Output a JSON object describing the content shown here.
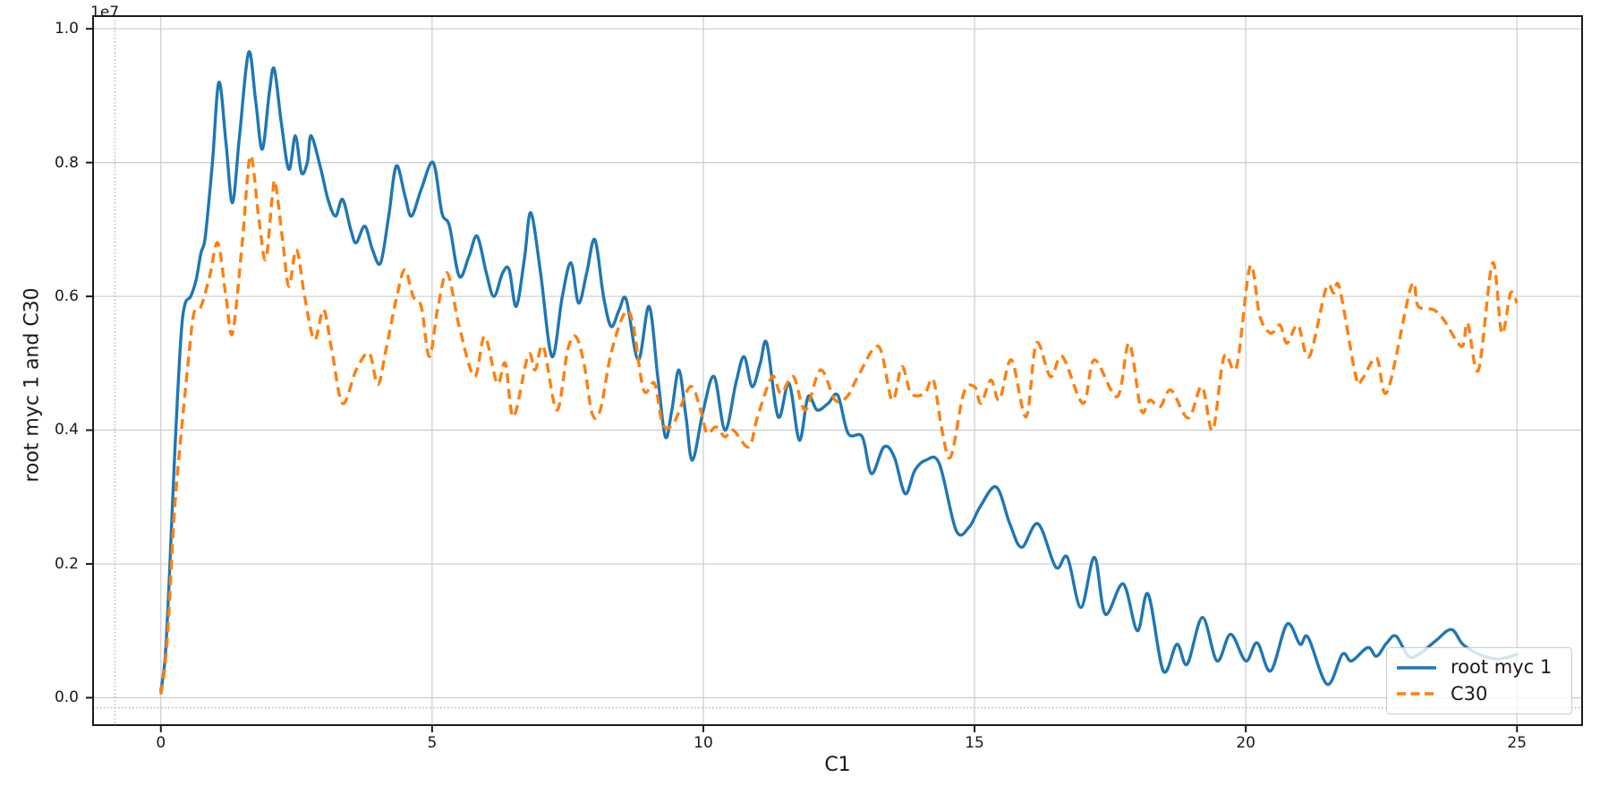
{
  "chart_data": {
    "type": "line",
    "title": "",
    "xlabel": "C1",
    "ylabel": "root myc 1 and C30",
    "y_offset_text": "1e7",
    "x_ticks": [
      "0",
      "5",
      "10",
      "15",
      "20",
      "25"
    ],
    "y_ticks": [
      "0.0",
      "0.2",
      "0.4",
      "0.6",
      "0.8",
      "1.0"
    ],
    "xlim": [
      -1.25,
      26.2
    ],
    "ylim": [
      -0.041,
      1.019
    ],
    "grid": "on",
    "y_unit": "1e7",
    "legend": {
      "location": "lower right",
      "labels": [
        "root myc 1",
        "C30"
      ]
    },
    "ref_lines": {
      "dotted_vline_x": -0.85,
      "dotted_hline_y": -0.015
    },
    "series": [
      {
        "name": "root myc 1",
        "color": "#1f77b4",
        "line_style": "solid",
        "points": [
          [
            0,
            0.01
          ],
          [
            0.08,
            0.06
          ],
          [
            0.15,
            0.17
          ],
          [
            0.22,
            0.3
          ],
          [
            0.3,
            0.44
          ],
          [
            0.38,
            0.55
          ],
          [
            0.45,
            0.59
          ],
          [
            0.55,
            0.6
          ],
          [
            0.65,
            0.625
          ],
          [
            0.74,
            0.665
          ],
          [
            0.82,
            0.69
          ],
          [
            0.95,
            0.8
          ],
          [
            1.07,
            0.92
          ],
          [
            1.2,
            0.83
          ],
          [
            1.32,
            0.74
          ],
          [
            1.45,
            0.84
          ],
          [
            1.62,
            0.965
          ],
          [
            1.75,
            0.89
          ],
          [
            1.87,
            0.82
          ],
          [
            2.0,
            0.905
          ],
          [
            2.09,
            0.94
          ],
          [
            2.22,
            0.86
          ],
          [
            2.36,
            0.79
          ],
          [
            2.48,
            0.84
          ],
          [
            2.59,
            0.785
          ],
          [
            2.7,
            0.8
          ],
          [
            2.77,
            0.84
          ],
          [
            2.95,
            0.79
          ],
          [
            3.08,
            0.745
          ],
          [
            3.22,
            0.72
          ],
          [
            3.35,
            0.745
          ],
          [
            3.5,
            0.7
          ],
          [
            3.6,
            0.68
          ],
          [
            3.76,
            0.705
          ],
          [
            3.9,
            0.67
          ],
          [
            4.05,
            0.65
          ],
          [
            4.2,
            0.72
          ],
          [
            4.34,
            0.795
          ],
          [
            4.5,
            0.75
          ],
          [
            4.62,
            0.72
          ],
          [
            4.8,
            0.76
          ],
          [
            5.02,
            0.8
          ],
          [
            5.18,
            0.725
          ],
          [
            5.32,
            0.705
          ],
          [
            5.5,
            0.63
          ],
          [
            5.68,
            0.66
          ],
          [
            5.83,
            0.69
          ],
          [
            6.0,
            0.635
          ],
          [
            6.14,
            0.6
          ],
          [
            6.3,
            0.635
          ],
          [
            6.42,
            0.64
          ],
          [
            6.55,
            0.585
          ],
          [
            6.7,
            0.655
          ],
          [
            6.82,
            0.725
          ],
          [
            7.0,
            0.635
          ],
          [
            7.21,
            0.51
          ],
          [
            7.4,
            0.6
          ],
          [
            7.56,
            0.65
          ],
          [
            7.7,
            0.59
          ],
          [
            7.85,
            0.635
          ],
          [
            8.0,
            0.685
          ],
          [
            8.16,
            0.6
          ],
          [
            8.3,
            0.555
          ],
          [
            8.45,
            0.58
          ],
          [
            8.58,
            0.595
          ],
          [
            8.8,
            0.505
          ],
          [
            9.0,
            0.585
          ],
          [
            9.16,
            0.48
          ],
          [
            9.3,
            0.39
          ],
          [
            9.42,
            0.43
          ],
          [
            9.55,
            0.49
          ],
          [
            9.68,
            0.42
          ],
          [
            9.8,
            0.355
          ],
          [
            10.0,
            0.43
          ],
          [
            10.2,
            0.48
          ],
          [
            10.4,
            0.4
          ],
          [
            10.6,
            0.47
          ],
          [
            10.75,
            0.51
          ],
          [
            10.9,
            0.465
          ],
          [
            11.05,
            0.5
          ],
          [
            11.17,
            0.53
          ],
          [
            11.38,
            0.42
          ],
          [
            11.58,
            0.47
          ],
          [
            11.77,
            0.385
          ],
          [
            11.93,
            0.45
          ],
          [
            12.1,
            0.43
          ],
          [
            12.3,
            0.44
          ],
          [
            12.48,
            0.452
          ],
          [
            12.67,
            0.395
          ],
          [
            12.93,
            0.39
          ],
          [
            13.1,
            0.335
          ],
          [
            13.33,
            0.375
          ],
          [
            13.52,
            0.36
          ],
          [
            13.72,
            0.305
          ],
          [
            13.9,
            0.34
          ],
          [
            14.1,
            0.355
          ],
          [
            14.35,
            0.35
          ],
          [
            14.66,
            0.25
          ],
          [
            14.9,
            0.255
          ],
          [
            15.1,
            0.285
          ],
          [
            15.4,
            0.315
          ],
          [
            15.65,
            0.26
          ],
          [
            15.87,
            0.225
          ],
          [
            16.17,
            0.26
          ],
          [
            16.5,
            0.195
          ],
          [
            16.71,
            0.21
          ],
          [
            16.96,
            0.135
          ],
          [
            17.21,
            0.21
          ],
          [
            17.41,
            0.125
          ],
          [
            17.74,
            0.17
          ],
          [
            18.0,
            0.1
          ],
          [
            18.2,
            0.155
          ],
          [
            18.48,
            0.04
          ],
          [
            18.73,
            0.08
          ],
          [
            18.92,
            0.05
          ],
          [
            19.2,
            0.12
          ],
          [
            19.47,
            0.055
          ],
          [
            19.72,
            0.095
          ],
          [
            20.0,
            0.055
          ],
          [
            20.21,
            0.082
          ],
          [
            20.46,
            0.04
          ],
          [
            20.76,
            0.11
          ],
          [
            21.0,
            0.08
          ],
          [
            21.15,
            0.09
          ],
          [
            21.5,
            0.02
          ],
          [
            21.78,
            0.065
          ],
          [
            21.95,
            0.055
          ],
          [
            22.25,
            0.075
          ],
          [
            22.41,
            0.062
          ],
          [
            22.6,
            0.082
          ],
          [
            22.77,
            0.092
          ],
          [
            23.0,
            0.062
          ],
          [
            23.21,
            0.066
          ],
          [
            23.5,
            0.085
          ],
          [
            23.79,
            0.102
          ],
          [
            24.0,
            0.08
          ],
          [
            24.3,
            0.065
          ],
          [
            24.6,
            0.058
          ],
          [
            24.8,
            0.06
          ],
          [
            25.0,
            0.065
          ]
        ]
      },
      {
        "name": "C30",
        "color": "#ff7f0e",
        "line_style": "dashed",
        "points": [
          [
            0,
            0.005
          ],
          [
            0.08,
            0.05
          ],
          [
            0.15,
            0.13
          ],
          [
            0.22,
            0.24
          ],
          [
            0.3,
            0.33
          ],
          [
            0.41,
            0.425
          ],
          [
            0.52,
            0.515
          ],
          [
            0.61,
            0.575
          ],
          [
            0.74,
            0.585
          ],
          [
            0.9,
            0.63
          ],
          [
            1.05,
            0.68
          ],
          [
            1.2,
            0.6
          ],
          [
            1.32,
            0.545
          ],
          [
            1.5,
            0.68
          ],
          [
            1.65,
            0.81
          ],
          [
            1.8,
            0.72
          ],
          [
            1.93,
            0.655
          ],
          [
            2.05,
            0.745
          ],
          [
            2.11,
            0.77
          ],
          [
            2.25,
            0.68
          ],
          [
            2.36,
            0.615
          ],
          [
            2.5,
            0.67
          ],
          [
            2.65,
            0.6
          ],
          [
            2.83,
            0.535
          ],
          [
            3.0,
            0.58
          ],
          [
            3.15,
            0.52
          ],
          [
            3.35,
            0.44
          ],
          [
            3.6,
            0.49
          ],
          [
            3.84,
            0.515
          ],
          [
            4.0,
            0.468
          ],
          [
            4.15,
            0.52
          ],
          [
            4.35,
            0.6
          ],
          [
            4.5,
            0.64
          ],
          [
            4.65,
            0.6
          ],
          [
            4.8,
            0.585
          ],
          [
            4.95,
            0.51
          ],
          [
            5.1,
            0.58
          ],
          [
            5.28,
            0.635
          ],
          [
            5.5,
            0.555
          ],
          [
            5.78,
            0.48
          ],
          [
            5.97,
            0.54
          ],
          [
            6.2,
            0.47
          ],
          [
            6.35,
            0.5
          ],
          [
            6.5,
            0.42
          ],
          [
            6.77,
            0.512
          ],
          [
            6.9,
            0.49
          ],
          [
            7.05,
            0.525
          ],
          [
            7.3,
            0.43
          ],
          [
            7.5,
            0.52
          ],
          [
            7.65,
            0.54
          ],
          [
            7.8,
            0.5
          ],
          [
            7.95,
            0.425
          ],
          [
            8.1,
            0.43
          ],
          [
            8.3,
            0.515
          ],
          [
            8.55,
            0.575
          ],
          [
            8.7,
            0.56
          ],
          [
            8.9,
            0.46
          ],
          [
            9.1,
            0.47
          ],
          [
            9.25,
            0.41
          ],
          [
            9.45,
            0.41
          ],
          [
            9.76,
            0.465
          ],
          [
            9.95,
            0.43
          ],
          [
            10.07,
            0.395
          ],
          [
            10.23,
            0.405
          ],
          [
            10.4,
            0.39
          ],
          [
            10.55,
            0.4
          ],
          [
            10.84,
            0.375
          ],
          [
            11.0,
            0.42
          ],
          [
            11.27,
            0.48
          ],
          [
            11.43,
            0.455
          ],
          [
            11.66,
            0.48
          ],
          [
            11.88,
            0.43
          ],
          [
            12.16,
            0.49
          ],
          [
            12.43,
            0.445
          ],
          [
            12.65,
            0.45
          ],
          [
            12.85,
            0.48
          ],
          [
            13.23,
            0.525
          ],
          [
            13.48,
            0.445
          ],
          [
            13.66,
            0.495
          ],
          [
            13.83,
            0.455
          ],
          [
            14.08,
            0.455
          ],
          [
            14.24,
            0.475
          ],
          [
            14.4,
            0.4
          ],
          [
            14.56,
            0.36
          ],
          [
            14.8,
            0.455
          ],
          [
            15.0,
            0.465
          ],
          [
            15.12,
            0.44
          ],
          [
            15.3,
            0.475
          ],
          [
            15.46,
            0.445
          ],
          [
            15.68,
            0.505
          ],
          [
            15.95,
            0.42
          ],
          [
            16.14,
            0.53
          ],
          [
            16.4,
            0.48
          ],
          [
            16.62,
            0.51
          ],
          [
            17.0,
            0.44
          ],
          [
            17.21,
            0.505
          ],
          [
            17.63,
            0.45
          ],
          [
            17.85,
            0.53
          ],
          [
            18.07,
            0.43
          ],
          [
            18.23,
            0.445
          ],
          [
            18.42,
            0.435
          ],
          [
            18.62,
            0.46
          ],
          [
            18.94,
            0.418
          ],
          [
            19.19,
            0.465
          ],
          [
            19.39,
            0.4
          ],
          [
            19.6,
            0.51
          ],
          [
            19.83,
            0.495
          ],
          [
            20.08,
            0.645
          ],
          [
            20.26,
            0.57
          ],
          [
            20.46,
            0.545
          ],
          [
            20.63,
            0.557
          ],
          [
            20.76,
            0.53
          ],
          [
            20.96,
            0.557
          ],
          [
            21.17,
            0.51
          ],
          [
            21.48,
            0.612
          ],
          [
            21.62,
            0.605
          ],
          [
            21.73,
            0.612
          ],
          [
            22.03,
            0.48
          ],
          [
            22.15,
            0.477
          ],
          [
            22.41,
            0.508
          ],
          [
            22.61,
            0.458
          ],
          [
            23.05,
            0.615
          ],
          [
            23.18,
            0.585
          ],
          [
            23.46,
            0.58
          ],
          [
            23.65,
            0.565
          ],
          [
            23.98,
            0.525
          ],
          [
            24.09,
            0.56
          ],
          [
            24.29,
            0.49
          ],
          [
            24.55,
            0.65
          ],
          [
            24.72,
            0.545
          ],
          [
            24.88,
            0.605
          ],
          [
            25.0,
            0.59
          ]
        ]
      }
    ]
  },
  "colors": {
    "grid": "#cccccc",
    "spine": "#1a1a1a",
    "dotted_ref": "#999999",
    "text": "#1a1a1a"
  }
}
